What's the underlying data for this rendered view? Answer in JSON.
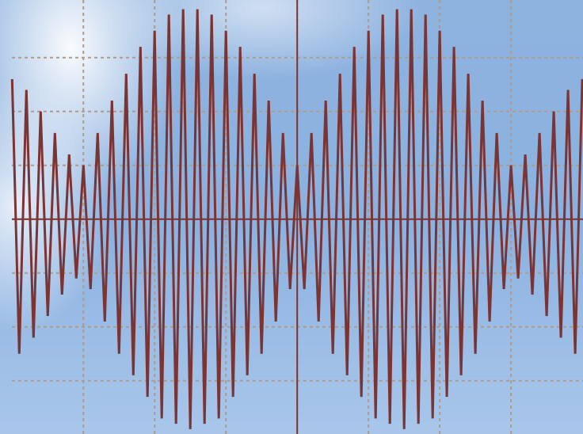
{
  "chart_data": {
    "type": "line",
    "x": [
      -4.0,
      -3.9,
      -3.8,
      -3.7,
      -3.6,
      -3.5,
      -3.4,
      -3.3,
      -3.2,
      -3.1,
      -3.0,
      -2.9,
      -2.8,
      -2.7,
      -2.6,
      -2.5,
      -2.4,
      -2.3,
      -2.2,
      -2.1,
      -2.0,
      -1.9,
      -1.8,
      -1.7,
      -1.6,
      -1.5,
      -1.4,
      -1.3,
      -1.2,
      -1.1,
      -1.0,
      -0.9,
      -0.8,
      -0.7,
      -0.6,
      -0.5,
      -0.4,
      -0.3,
      -0.2,
      -0.1,
      0.0,
      0.1,
      0.2,
      0.3,
      0.4,
      0.5,
      0.6,
      0.7,
      0.8,
      0.9,
      1.0,
      1.1,
      1.2,
      1.3,
      1.4,
      1.5,
      1.6,
      1.7,
      1.8,
      1.9,
      2.0,
      2.1,
      2.2,
      2.3,
      2.4,
      2.5,
      2.6,
      2.7,
      2.8,
      2.9,
      3.0,
      3.1,
      3.2,
      3.3,
      3.4,
      3.5,
      3.6,
      3.7,
      3.8,
      3.9,
      4.0
    ],
    "series": [
      {
        "color": "#7b3434",
        "values": [
          2.6,
          -2.5,
          2.4,
          -2.2,
          2.0,
          -1.8,
          1.6,
          -1.4,
          1.2,
          -1.1,
          1.0,
          -1.3,
          1.6,
          -1.9,
          2.2,
          -2.5,
          2.7,
          -2.9,
          3.2,
          -3.3,
          3.5,
          -3.7,
          3.8,
          -3.8,
          3.9,
          -3.9,
          3.9,
          -3.8,
          3.8,
          -3.7,
          3.5,
          -3.3,
          3.2,
          -2.9,
          2.7,
          -2.5,
          2.2,
          -1.9,
          1.6,
          -1.3,
          1.0,
          -1.3,
          1.6,
          -1.9,
          2.2,
          -2.5,
          2.7,
          -2.9,
          3.2,
          -3.3,
          3.5,
          -3.7,
          3.8,
          -3.8,
          3.9,
          -3.9,
          3.9,
          -3.8,
          3.8,
          -3.7,
          3.5,
          -3.3,
          3.2,
          -2.9,
          2.7,
          -2.5,
          2.2,
          -1.9,
          1.6,
          -1.3,
          1.0,
          -1.1,
          1.2,
          -1.4,
          1.6,
          -1.8,
          2.0,
          -2.2,
          2.4,
          -2.5,
          2.6
        ]
      }
    ],
    "xlim": [
      -4.17,
      4.01
    ],
    "ylim": [
      -3.99,
      4.07
    ],
    "xticks": [
      -3,
      -2,
      -1,
      0,
      1,
      2,
      3
    ],
    "yticks": [
      -3,
      -2,
      -1,
      0,
      1,
      2,
      3
    ],
    "grid": true
  }
}
